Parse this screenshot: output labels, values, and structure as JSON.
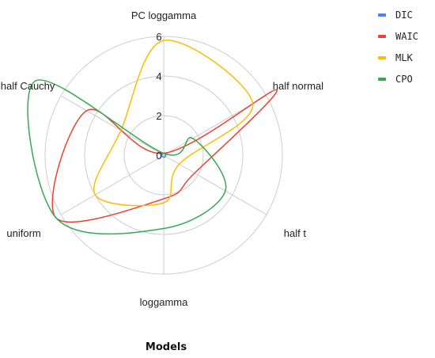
{
  "chart_data": {
    "type": "radar",
    "title": "Models",
    "categories": [
      "PC loggamma",
      "half normal",
      "half t",
      "loggamma",
      "uniform",
      "half Cauchy"
    ],
    "rlim": [
      0,
      6
    ],
    "ticks": [
      "0",
      "2",
      "4",
      "6"
    ],
    "tick_values": [
      0,
      2,
      4,
      6
    ],
    "grid": true,
    "legend_position": "top-right",
    "series": [
      {
        "name": "DIC",
        "color": "#4285F4",
        "values": [
          0.1,
          0.1,
          0.1,
          0.1,
          0.1,
          0.1
        ]
      },
      {
        "name": "WAIC",
        "color": "#EA4335",
        "values": [
          0.1,
          6.6,
          1.8,
          2.2,
          6.3,
          4.5
        ]
      },
      {
        "name": "MLK",
        "color": "#FBBC04",
        "values": [
          5.8,
          5.2,
          0.9,
          2.4,
          4.0,
          2.5
        ]
      },
      {
        "name": "CPO",
        "color": "#34A853",
        "values": [
          0.1,
          1.7,
          3.6,
          3.7,
          6.3,
          7.5
        ]
      }
    ]
  }
}
